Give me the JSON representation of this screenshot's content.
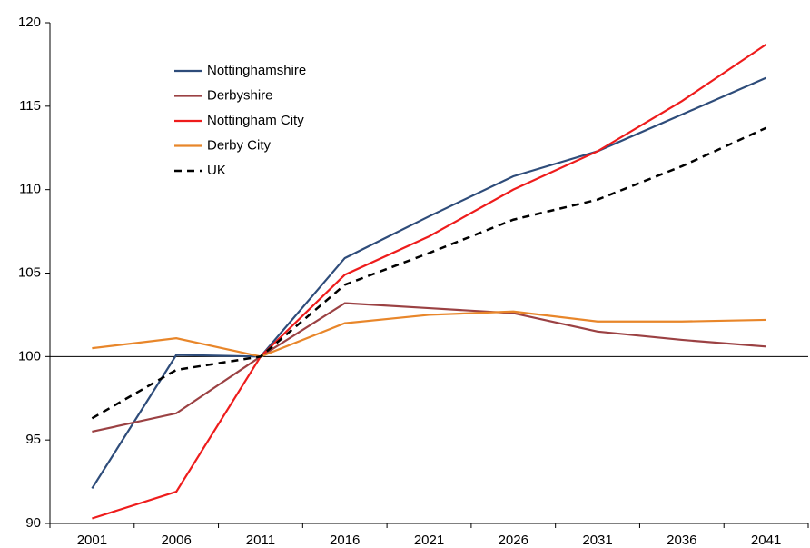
{
  "chart_data": {
    "type": "line",
    "categories": [
      "2001",
      "2006",
      "2011",
      "2016",
      "2021",
      "2026",
      "2031",
      "2036",
      "2041"
    ],
    "series": [
      {
        "name": "Nottinghamshire",
        "color": "#2e4c7a",
        "values": [
          92.1,
          100.1,
          100,
          105.9,
          108.4,
          110.8,
          112.3,
          114.5,
          116.7
        ]
      },
      {
        "name": "Derbyshire",
        "color": "#9b4143",
        "values": [
          95.5,
          96.6,
          100,
          103.2,
          102.9,
          102.6,
          101.5,
          101.0,
          100.6
        ]
      },
      {
        "name": "Nottingham City",
        "color": "#ee1c1c",
        "values": [
          90.3,
          91.9,
          100,
          104.9,
          107.2,
          110.0,
          112.3,
          115.3,
          118.7
        ]
      },
      {
        "name": "Derby City",
        "color": "#e8862a",
        "values": [
          100.5,
          101.1,
          100,
          102.0,
          102.5,
          102.7,
          102.1,
          102.1,
          102.2
        ]
      },
      {
        "name": "UK",
        "color": "#000000",
        "dashed": true,
        "values": [
          96.3,
          99.2,
          100,
          104.3,
          106.2,
          108.2,
          109.4,
          111.4,
          113.7
        ]
      }
    ],
    "ylim": [
      90,
      120
    ],
    "yticks": [
      90,
      95,
      100,
      105,
      110,
      115,
      120
    ],
    "x_axis_crossing": 100,
    "grid": false,
    "legend": "top-left"
  }
}
